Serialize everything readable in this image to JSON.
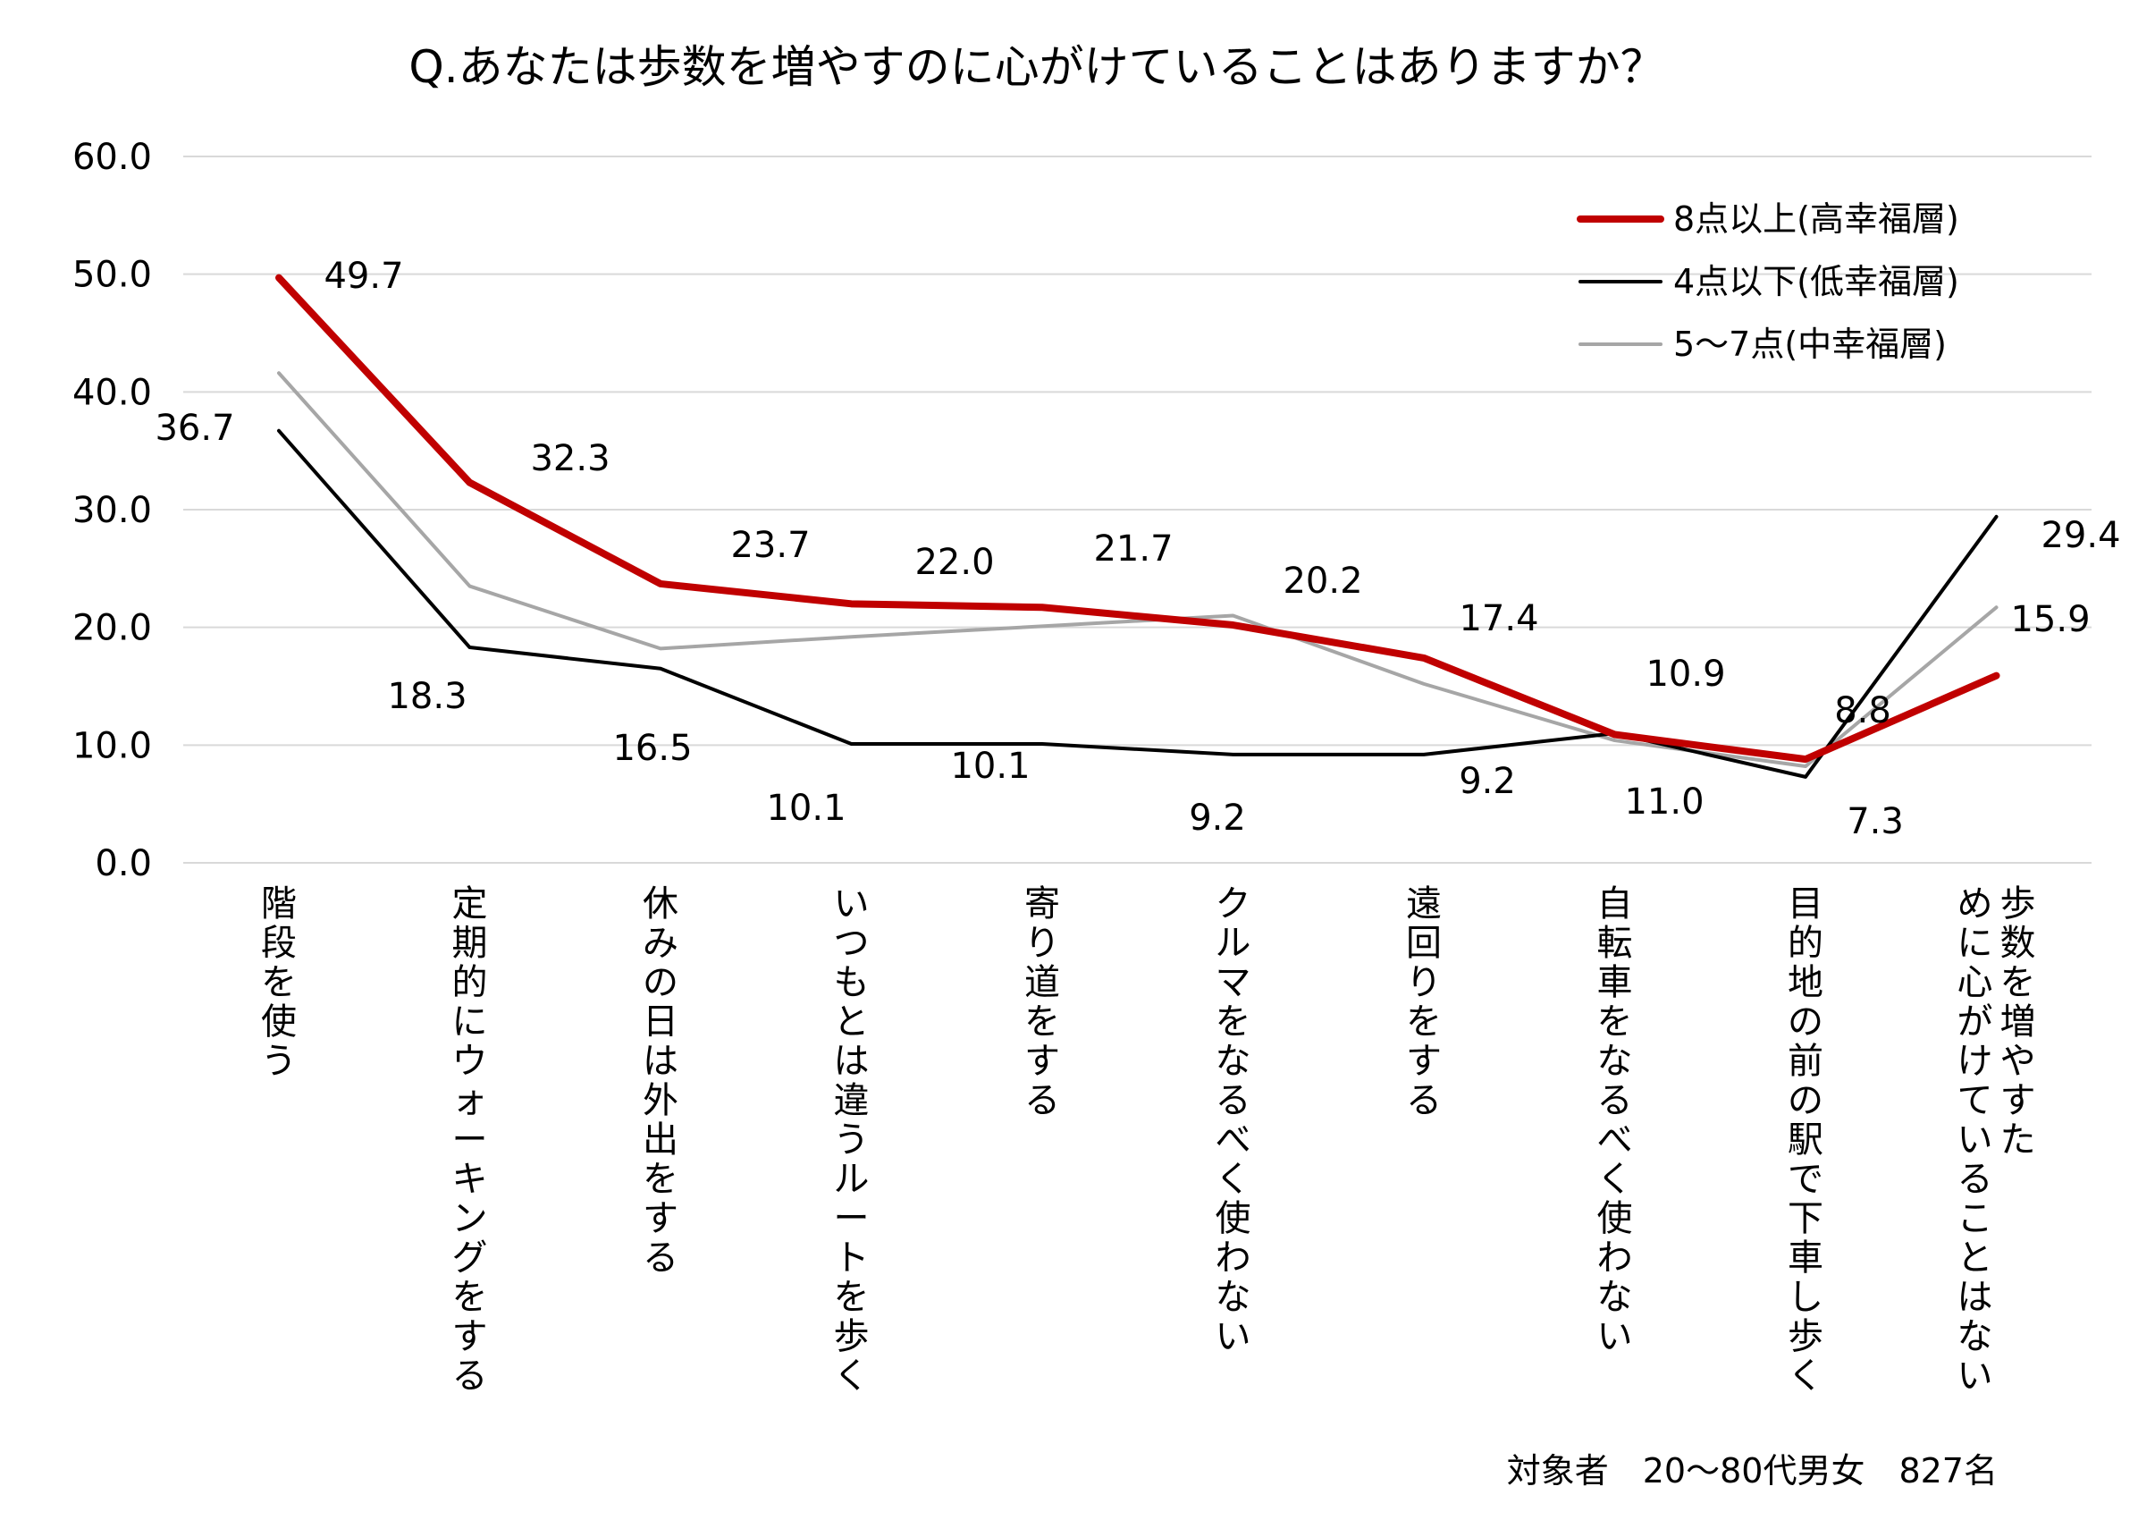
{
  "chart_data": {
    "type": "line",
    "title": "Q.あなたは歩数を増やすのに心がけていることはありますか？",
    "xlabel": "",
    "ylabel": "",
    "ylim": [
      0,
      60
    ],
    "y_ticks": [
      "0.0",
      "10.0",
      "20.0",
      "30.0",
      "40.0",
      "50.0",
      "60.0"
    ],
    "grid": true,
    "legend_position": "top-right",
    "categories": [
      "階段を使う",
      "定期的にウォーキングをする",
      "休みの日は外出をする",
      "いつもとは違うルートを歩く",
      "寄り道をする",
      "クルマをなるべく使わない",
      "遠回りをする",
      "自転車をなるべく使わない",
      "目的地の前の駅で下車し歩く",
      "歩数を増やすために心がけていることはない"
    ],
    "series": [
      {
        "name": "8点以上(高幸福層)",
        "color": "#C00000",
        "values": [
          49.7,
          32.3,
          23.7,
          22.0,
          21.7,
          20.2,
          17.4,
          10.9,
          8.8,
          15.9
        ],
        "labels": [
          "49.7",
          "32.3",
          "23.7",
          "22.0",
          "21.7",
          "20.2",
          "17.4",
          "10.9",
          "8.8",
          "15.9"
        ]
      },
      {
        "name": "4点以下(低幸福層)",
        "color": "#000000",
        "values": [
          36.7,
          18.3,
          16.5,
          10.1,
          10.1,
          9.2,
          9.2,
          11.0,
          7.3,
          29.4
        ],
        "labels": [
          "36.7",
          "18.3",
          "16.5",
          "10.1",
          "10.1",
          "9.2",
          "9.2",
          "11.0",
          "7.3",
          "29.4"
        ]
      },
      {
        "name": "5～7点(中幸福層)",
        "color": "#A6A6A6",
        "values": [
          41.6,
          23.5,
          18.2,
          19.2,
          20.1,
          21.0,
          15.2,
          10.4,
          8.2,
          21.7
        ],
        "labels": []
      }
    ],
    "note": "対象者　20～80代男女　827名"
  }
}
